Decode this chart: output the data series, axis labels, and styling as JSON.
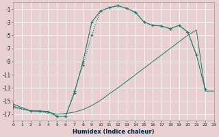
{
  "xlabel": "Humidex (Indice chaleur)",
  "bg_color": "#e8d0d0",
  "grid_color": "#ffffff",
  "line_color": "#1a7a6e",
  "xlim": [
    0,
    23
  ],
  "ylim": [
    -18,
    0
  ],
  "xticks": [
    0,
    1,
    2,
    3,
    4,
    5,
    6,
    7,
    8,
    9,
    10,
    11,
    12,
    13,
    14,
    15,
    16,
    17,
    18,
    19,
    20,
    21,
    22,
    23
  ],
  "yticks": [
    -1,
    -3,
    -5,
    -7,
    -9,
    -11,
    -13,
    -15,
    -17
  ],
  "line1_x": [
    0,
    1,
    2,
    3,
    4,
    5,
    6,
    7,
    8,
    9,
    10,
    11,
    12,
    13,
    14,
    15,
    16,
    17,
    18,
    19,
    20,
    21,
    22,
    23
  ],
  "line1_y": [
    -15.8,
    -16.2,
    -16.5,
    -16.6,
    -16.7,
    -17.0,
    -16.9,
    -16.7,
    -16.3,
    -15.7,
    -14.9,
    -13.9,
    -13.0,
    -12.0,
    -11.0,
    -10.0,
    -9.0,
    -8.0,
    -7.0,
    -6.0,
    -5.0,
    -4.2,
    -13.5,
    -13.5
  ],
  "line2_x": [
    0,
    2,
    3,
    4,
    5,
    6,
    7,
    8,
    9,
    10,
    11,
    12,
    13,
    14,
    15,
    16,
    17,
    18,
    19,
    20,
    21,
    22
  ],
  "line2_y": [
    -15.5,
    -16.5,
    -16.5,
    -16.6,
    -17.3,
    -17.3,
    -13.8,
    -9.0,
    -3.0,
    -1.3,
    -0.8,
    -0.5,
    -0.9,
    -1.5,
    -3.0,
    -3.5,
    -3.6,
    -4.0,
    -3.5,
    -4.5,
    -8.0,
    -13.2
  ],
  "line3_x": [
    0,
    2,
    3,
    5,
    6,
    7,
    8,
    9,
    10,
    11,
    12,
    13,
    14,
    15,
    16,
    17,
    18,
    19,
    20,
    21
  ],
  "line3_y": [
    -16.0,
    -16.5,
    -16.5,
    -17.3,
    -17.3,
    -13.5,
    -9.5,
    -5.0,
    -1.3,
    -0.8,
    -0.5,
    -0.9,
    -1.5,
    -3.0,
    -3.5,
    -3.6,
    -4.0,
    -3.5,
    -4.5,
    -8.0
  ]
}
